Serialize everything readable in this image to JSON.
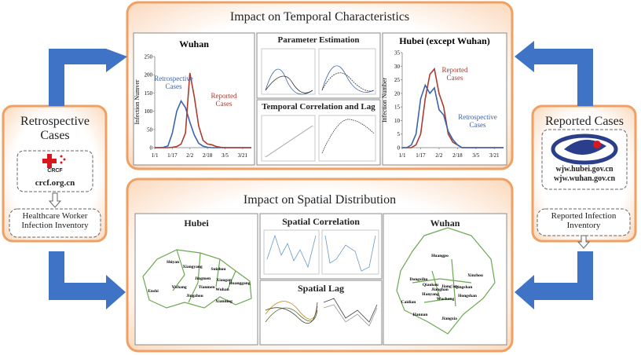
{
  "retrospective": {
    "title": "Retrospective Cases",
    "logo": "CRCF",
    "source": "crcf.org.cn",
    "inventory": "Healthcare Worker Infection Inventory"
  },
  "reported": {
    "title": "Reported Cases",
    "sources": [
      "wjw.hubei.gov.cn",
      "wjw.wuhan.gov.cn"
    ],
    "inventory": "Reported Infection Inventory"
  },
  "temporal": {
    "title": "Impact on Temporal Characteristics",
    "wuhan_chart": {
      "type": "line",
      "title": "Wuhan",
      "y_label": "Infection Numver",
      "x": [
        "1/1",
        "1/5",
        "1/9",
        "1/13",
        "1/17",
        "1/21",
        "1/25",
        "1/29",
        "2/2",
        "2/6",
        "2/10",
        "2/14",
        "2/18",
        "2/22",
        "2/26",
        "3/1",
        "3/5",
        "3/9",
        "3/13",
        "3/17",
        "3/21",
        "3/25",
        "3/29"
      ],
      "xlim": [
        "1/1",
        "3/29"
      ],
      "xticks": [
        "1/1",
        "1/17",
        "2/2",
        "2/18",
        "3/5",
        "3/21"
      ],
      "ylim": [
        0,
        250
      ],
      "yticks": [
        0,
        50,
        100,
        150,
        200,
        250
      ],
      "series": [
        {
          "name": "Retrospective Cases",
          "color": "#3b64ad",
          "values": [
            0,
            0,
            1,
            5,
            40,
            100,
            128,
            110,
            70,
            35,
            12,
            4,
            1,
            0,
            0,
            0,
            0,
            0,
            0,
            0,
            0,
            0,
            0
          ]
        },
        {
          "name": "Reported Cases",
          "color": "#b03a2e",
          "values": [
            0,
            0,
            0,
            0,
            1,
            3,
            10,
            40,
            205,
            140,
            60,
            20,
            10,
            8,
            3,
            1,
            0,
            0,
            0,
            0,
            0,
            0,
            0
          ]
        }
      ]
    },
    "parameter_estimation": "Parameter Estimation",
    "correlation_lag": "Temporal Correlation and Lag",
    "hubei_chart": {
      "type": "line",
      "title": "Hubei (except Wuhan)",
      "y_label": "Infection Number",
      "x": [
        "1/1",
        "1/5",
        "1/9",
        "1/13",
        "1/17",
        "1/21",
        "1/25",
        "1/29",
        "2/2",
        "2/6",
        "2/10",
        "2/14",
        "2/18",
        "2/22",
        "2/26",
        "3/1",
        "3/5",
        "3/9",
        "3/13",
        "3/17",
        "3/21",
        "3/25",
        "3/29"
      ],
      "xlim": [
        "1/1",
        "3/29"
      ],
      "xticks": [
        "1/1",
        "1/17",
        "2/2",
        "2/18",
        "3/5",
        "3/21"
      ],
      "ylim": [
        0,
        35
      ],
      "yticks": [
        0,
        5,
        10,
        15,
        20,
        25,
        30,
        35
      ],
      "series": [
        {
          "name": "Reported Cases",
          "color": "#b03a2e",
          "values": [
            0,
            0,
            0,
            1,
            5,
            18,
            27,
            29,
            20,
            15,
            5,
            2,
            1,
            0,
            0,
            0,
            0,
            0,
            0,
            0,
            0,
            0,
            0
          ]
        },
        {
          "name": "Retrospective Cases",
          "color": "#3b64ad",
          "values": [
            0,
            0,
            1,
            5,
            18,
            23,
            20,
            22,
            14,
            12,
            6,
            3,
            1,
            0,
            0,
            0,
            0,
            0,
            0,
            0,
            0,
            0,
            0
          ]
        }
      ]
    }
  },
  "spatial": {
    "title": "Impact on Spatial Distribution",
    "hubei_map": {
      "title": "Hubei",
      "labels": [
        "Shiyan",
        "Xiangyang",
        "Suizhou",
        "Yichang",
        "Jingmen",
        "Xiaogan",
        "Enshi",
        "Jingzhou",
        "Wuhan",
        "Huanggang",
        "Xianning",
        "Tianmen"
      ]
    },
    "spatial_correlation": "Spatial Correlation",
    "spatial_lag": "Spatial Lag",
    "wuhan_map": {
      "title": "Wuhan",
      "labels": [
        "Huangpo",
        "Xinzhou",
        "Dongxihu",
        "Qiaokou",
        "Jiang'an",
        "Qingshan",
        "Jianghan",
        "Hanyang",
        "Wuchang",
        "Hongshan",
        "Caidian",
        "Hannan",
        "Jiangxia"
      ]
    }
  }
}
